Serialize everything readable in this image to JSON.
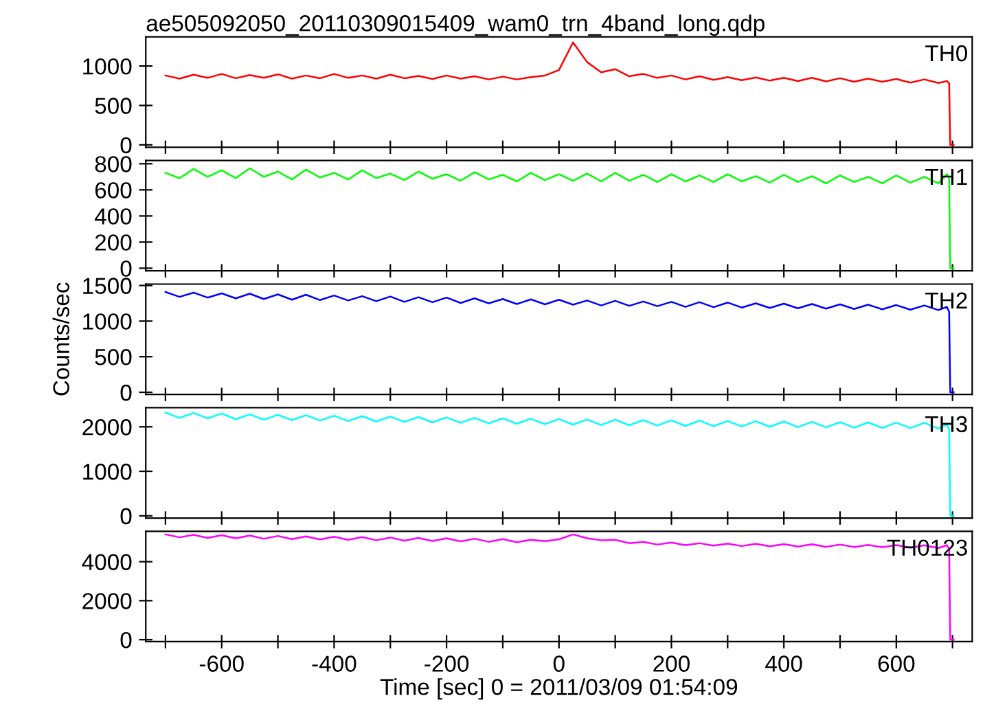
{
  "chart_data": [
    {
      "type": "line",
      "title": "ae505092050_20110309015409_wam0_trn_4band_long.qdp",
      "tick_labels": "y",
      "x": [
        -700,
        -675,
        -650,
        -625,
        -600,
        -575,
        -550,
        -525,
        -500,
        -475,
        -450,
        -425,
        -400,
        -375,
        -350,
        -325,
        -300,
        -275,
        -250,
        -225,
        -200,
        -175,
        -150,
        -125,
        -100,
        -75,
        -50,
        -25,
        0,
        25,
        50,
        75,
        100,
        125,
        150,
        175,
        200,
        225,
        250,
        275,
        300,
        325,
        350,
        375,
        400,
        425,
        450,
        475,
        500,
        525,
        550,
        575,
        600,
        625,
        650,
        675,
        690,
        694,
        696,
        702
      ],
      "series": [
        {
          "name": "TH0",
          "color": "#ff0000",
          "values": [
            880,
            840,
            890,
            850,
            900,
            845,
            885,
            850,
            895,
            840,
            880,
            845,
            900,
            850,
            880,
            840,
            890,
            845,
            875,
            835,
            880,
            840,
            870,
            830,
            865,
            830,
            860,
            880,
            950,
            1300,
            1050,
            920,
            960,
            870,
            900,
            850,
            880,
            830,
            870,
            825,
            860,
            820,
            855,
            815,
            850,
            810,
            850,
            805,
            845,
            800,
            840,
            800,
            835,
            790,
            830,
            785,
            810,
            780,
            0,
            0
          ]
        }
      ],
      "xlim": [
        -735,
        735
      ],
      "xticks": [
        {
          "value": -700,
          "label": null
        },
        -600,
        {
          "value": -500,
          "label": null
        },
        -400,
        {
          "value": -300,
          "label": null
        },
        -200,
        {
          "value": -100,
          "label": null
        },
        0,
        {
          "value": 100,
          "label": null
        },
        200,
        {
          "value": 300,
          "label": null
        },
        400,
        {
          "value": 500,
          "label": null
        },
        600,
        {
          "value": 700,
          "label": null
        }
      ],
      "ylim": [
        -30,
        1370
      ],
      "yticks": [
        0,
        500,
        1000
      ]
    },
    {
      "type": "line",
      "tick_labels": "y",
      "x": [
        -700,
        -675,
        -650,
        -625,
        -600,
        -575,
        -550,
        -525,
        -500,
        -475,
        -450,
        -425,
        -400,
        -375,
        -350,
        -325,
        -300,
        -275,
        -250,
        -225,
        -200,
        -175,
        -150,
        -125,
        -100,
        -75,
        -50,
        -25,
        0,
        25,
        50,
        75,
        100,
        125,
        150,
        175,
        200,
        225,
        250,
        275,
        300,
        325,
        350,
        375,
        400,
        425,
        450,
        475,
        500,
        525,
        550,
        575,
        600,
        625,
        650,
        675,
        690,
        694,
        696,
        702
      ],
      "series": [
        {
          "name": "TH1",
          "color": "#00ff00",
          "values": [
            730,
            690,
            760,
            700,
            750,
            690,
            765,
            700,
            740,
            680,
            755,
            695,
            730,
            680,
            750,
            690,
            725,
            675,
            740,
            685,
            720,
            670,
            735,
            680,
            715,
            665,
            730,
            675,
            720,
            670,
            725,
            665,
            730,
            670,
            715,
            660,
            720,
            665,
            710,
            660,
            720,
            665,
            705,
            655,
            715,
            660,
            705,
            650,
            710,
            660,
            700,
            650,
            710,
            655,
            700,
            650,
            720,
            690,
            0,
            0
          ]
        }
      ],
      "xlim": [
        -735,
        735
      ],
      "xticks": [
        {
          "value": -700,
          "label": null
        },
        -600,
        {
          "value": -500,
          "label": null
        },
        -400,
        {
          "value": -300,
          "label": null
        },
        -200,
        {
          "value": -100,
          "label": null
        },
        0,
        {
          "value": 100,
          "label": null
        },
        200,
        {
          "value": 300,
          "label": null
        },
        400,
        {
          "value": 500,
          "label": null
        },
        600,
        {
          "value": 700,
          "label": null
        }
      ],
      "ylim": [
        -20,
        825
      ],
      "yticks": [
        0,
        200,
        400,
        600,
        800
      ]
    },
    {
      "type": "line",
      "tick_labels": "y",
      "ylabel": "Counts/sec",
      "x": [
        -700,
        -675,
        -650,
        -625,
        -600,
        -575,
        -550,
        -525,
        -500,
        -475,
        -450,
        -425,
        -400,
        -375,
        -350,
        -325,
        -300,
        -275,
        -250,
        -225,
        -200,
        -175,
        -150,
        -125,
        -100,
        -75,
        -50,
        -25,
        0,
        25,
        50,
        75,
        100,
        125,
        150,
        175,
        200,
        225,
        250,
        275,
        300,
        325,
        350,
        375,
        400,
        425,
        450,
        475,
        500,
        525,
        550,
        575,
        600,
        625,
        650,
        675,
        690,
        694,
        696,
        702
      ],
      "series": [
        {
          "name": "TH2",
          "color": "#0000ff",
          "values": [
            1410,
            1340,
            1400,
            1330,
            1390,
            1320,
            1385,
            1310,
            1375,
            1300,
            1370,
            1295,
            1360,
            1290,
            1350,
            1280,
            1345,
            1270,
            1335,
            1265,
            1330,
            1255,
            1320,
            1250,
            1310,
            1240,
            1305,
            1235,
            1300,
            1230,
            1290,
            1220,
            1285,
            1215,
            1275,
            1210,
            1270,
            1200,
            1265,
            1195,
            1260,
            1190,
            1250,
            1185,
            1245,
            1180,
            1240,
            1175,
            1235,
            1170,
            1230,
            1165,
            1225,
            1160,
            1220,
            1155,
            1200,
            1130,
            0,
            0
          ]
        }
      ],
      "xlim": [
        -735,
        735
      ],
      "xticks": [
        {
          "value": -700,
          "label": null
        },
        -600,
        {
          "value": -500,
          "label": null
        },
        -400,
        {
          "value": -300,
          "label": null
        },
        -200,
        {
          "value": -100,
          "label": null
        },
        0,
        {
          "value": 100,
          "label": null
        },
        200,
        {
          "value": 300,
          "label": null
        },
        400,
        {
          "value": 500,
          "label": null
        },
        600,
        {
          "value": 700,
          "label": null
        }
      ],
      "ylim": [
        -30,
        1520
      ],
      "yticks": [
        0,
        500,
        1000,
        1500
      ]
    },
    {
      "type": "line",
      "tick_labels": "y",
      "x": [
        -700,
        -675,
        -650,
        -625,
        -600,
        -575,
        -550,
        -525,
        -500,
        -475,
        -450,
        -425,
        -400,
        -375,
        -350,
        -325,
        -300,
        -275,
        -250,
        -225,
        -200,
        -175,
        -150,
        -125,
        -100,
        -75,
        -50,
        -25,
        0,
        25,
        50,
        75,
        100,
        125,
        150,
        175,
        200,
        225,
        250,
        275,
        300,
        325,
        350,
        375,
        400,
        425,
        450,
        475,
        500,
        525,
        550,
        575,
        600,
        625,
        650,
        675,
        690,
        694,
        696,
        702
      ],
      "series": [
        {
          "name": "TH3",
          "color": "#00ffff",
          "values": [
            2320,
            2200,
            2310,
            2190,
            2300,
            2170,
            2280,
            2160,
            2270,
            2150,
            2260,
            2140,
            2250,
            2130,
            2240,
            2120,
            2230,
            2110,
            2220,
            2100,
            2210,
            2090,
            2200,
            2080,
            2190,
            2070,
            2180,
            2060,
            2175,
            2050,
            2165,
            2040,
            2160,
            2035,
            2150,
            2030,
            2145,
            2020,
            2140,
            2015,
            2130,
            2010,
            2125,
            2000,
            2120,
            1995,
            2110,
            1990,
            2105,
            1980,
            2100,
            1975,
            2095,
            1970,
            2090,
            1960,
            2050,
            1940,
            0,
            0
          ]
        }
      ],
      "xlim": [
        -735,
        735
      ],
      "xticks": [
        {
          "value": -700,
          "label": null
        },
        -600,
        {
          "value": -500,
          "label": null
        },
        -400,
        {
          "value": -300,
          "label": null
        },
        -200,
        {
          "value": -100,
          "label": null
        },
        0,
        {
          "value": 100,
          "label": null
        },
        200,
        {
          "value": 300,
          "label": null
        },
        400,
        {
          "value": 500,
          "label": null
        },
        600,
        {
          "value": 700,
          "label": null
        }
      ],
      "ylim": [
        -50,
        2430
      ],
      "yticks": [
        0,
        1000,
        2000
      ]
    },
    {
      "type": "line",
      "xlabel": "Time [sec] 0 = 2011/03/09 01:54:09",
      "x": [
        -700,
        -675,
        -650,
        -625,
        -600,
        -575,
        -550,
        -525,
        -500,
        -475,
        -450,
        -425,
        -400,
        -375,
        -350,
        -325,
        -300,
        -275,
        -250,
        -225,
        -200,
        -175,
        -150,
        -125,
        -100,
        -75,
        -50,
        -25,
        0,
        25,
        50,
        75,
        100,
        125,
        150,
        175,
        200,
        225,
        250,
        275,
        300,
        325,
        350,
        375,
        400,
        425,
        450,
        475,
        500,
        525,
        550,
        575,
        600,
        625,
        650,
        675,
        690,
        694,
        696,
        702
      ],
      "series": [
        {
          "name": "TH0123",
          "color": "#ff00ff",
          "values": [
            5400,
            5250,
            5380,
            5220,
            5360,
            5200,
            5340,
            5180,
            5320,
            5160,
            5300,
            5140,
            5280,
            5120,
            5260,
            5100,
            5240,
            5080,
            5220,
            5060,
            5200,
            5040,
            5180,
            5020,
            5160,
            5000,
            5120,
            5050,
            5150,
            5400,
            5200,
            5100,
            5120,
            4950,
            5020,
            4880,
            4980,
            4850,
            4950,
            4820,
            4930,
            4800,
            4920,
            4790,
            4900,
            4780,
            4890,
            4760,
            4880,
            4750,
            4860,
            4740,
            4850,
            4720,
            4840,
            4700,
            4850,
            4650,
            0,
            0
          ]
        }
      ],
      "xlim": [
        -735,
        735
      ],
      "xticks": [
        {
          "value": -700,
          "label": null
        },
        -600,
        {
          "value": -500,
          "label": null
        },
        -400,
        {
          "value": -300,
          "label": null
        },
        -200,
        {
          "value": -100,
          "label": null
        },
        0,
        {
          "value": 100,
          "label": null
        },
        200,
        {
          "value": 300,
          "label": null
        },
        400,
        {
          "value": 500,
          "label": null
        },
        600,
        {
          "value": 700,
          "label": null
        }
      ],
      "ylim": [
        -100,
        5560
      ],
      "yticks": [
        0,
        2000,
        4000
      ]
    }
  ]
}
